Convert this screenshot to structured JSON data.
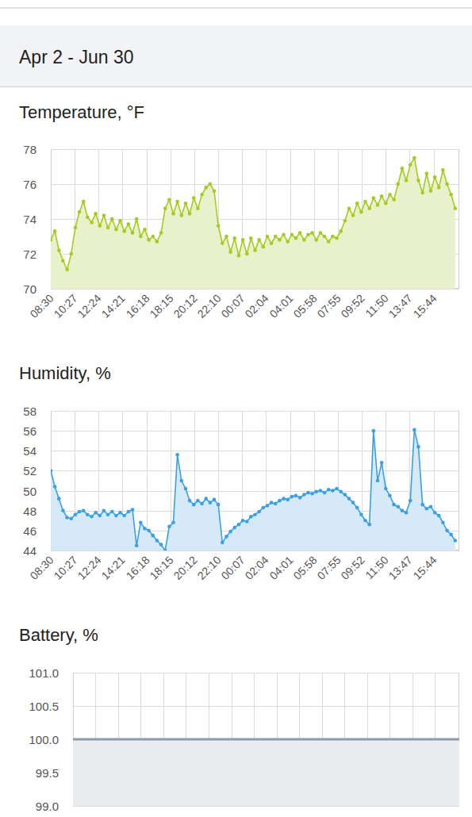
{
  "page": {
    "title": "Apr 2 - Jun 30"
  },
  "chart_data": [
    {
      "type": "area",
      "title": "Temperature, °F",
      "color": "#a3cc1e",
      "marker": "circle",
      "grid": true,
      "x": [
        0,
        20,
        40,
        60,
        80,
        100,
        120,
        140,
        160,
        180,
        200,
        220,
        240,
        260,
        280,
        300,
        320,
        340,
        360,
        380,
        400,
        420,
        440,
        460,
        480,
        500,
        520,
        540,
        560,
        580,
        600,
        620,
        640,
        660,
        680,
        700,
        720,
        740,
        760,
        780,
        800,
        820,
        840,
        860,
        880,
        900,
        920,
        940,
        960,
        980,
        1000,
        1020,
        1040,
        1060,
        1080,
        1100,
        1120,
        1140,
        1160,
        1180,
        1200,
        1220,
        1240,
        1260,
        1280,
        1300,
        1320,
        1340,
        1360,
        1380,
        1400,
        1420,
        1440,
        1460,
        1480,
        1500,
        1520,
        1540,
        1560,
        1580,
        1600,
        1620,
        1640,
        1660,
        1680,
        1700,
        1720,
        1740,
        1760,
        1780,
        1800,
        1820,
        1840,
        1860,
        1880,
        1900,
        1920,
        1940,
        1960,
        1980
      ],
      "values": [
        72.8,
        73.3,
        72.2,
        71.6,
        71.1,
        72.0,
        73.5,
        74.4,
        75.0,
        74.1,
        73.8,
        74.3,
        73.6,
        74.2,
        73.5,
        74.0,
        73.4,
        73.9,
        73.3,
        73.7,
        73.2,
        74.0,
        73.0,
        73.4,
        72.8,
        73.0,
        72.7,
        73.2,
        74.6,
        75.1,
        74.3,
        75.0,
        74.2,
        74.9,
        74.3,
        75.2,
        74.6,
        75.4,
        75.8,
        76.0,
        75.6,
        73.6,
        72.6,
        73.0,
        72.1,
        72.9,
        71.9,
        72.8,
        72.0,
        72.9,
        72.2,
        72.8,
        72.4,
        73.0,
        72.6,
        73.0,
        72.8,
        73.1,
        72.7,
        73.1,
        72.9,
        73.2,
        72.8,
        73.1,
        73.2,
        72.8,
        73.2,
        73.0,
        72.7,
        73.0,
        72.9,
        73.3,
        73.9,
        74.6,
        74.2,
        74.9,
        74.4,
        75.0,
        74.6,
        75.2,
        74.8,
        75.3,
        74.9,
        75.4,
        75.1,
        76.0,
        76.9,
        76.2,
        77.1,
        77.5,
        76.2,
        75.5,
        76.6,
        75.6,
        76.4,
        75.8,
        76.8,
        76.0,
        75.4,
        74.6
      ],
      "xlim": [
        0,
        2000
      ],
      "xticks": [
        {
          "value": 0,
          "label": "08:30"
        },
        {
          "value": 117,
          "label": "10:27"
        },
        {
          "value": 234,
          "label": "12:24"
        },
        {
          "value": 351,
          "label": "14:21"
        },
        {
          "value": 468,
          "label": "16:18"
        },
        {
          "value": 585,
          "label": "18:15"
        },
        {
          "value": 702,
          "label": "20:12"
        },
        {
          "value": 820,
          "label": "22:10"
        },
        {
          "value": 937,
          "label": "00:07"
        },
        {
          "value": 1054,
          "label": "02:04"
        },
        {
          "value": 1171,
          "label": "04:01"
        },
        {
          "value": 1288,
          "label": "05:58"
        },
        {
          "value": 1405,
          "label": "07:55"
        },
        {
          "value": 1522,
          "label": "09:52"
        },
        {
          "value": 1640,
          "label": "11:50"
        },
        {
          "value": 1757,
          "label": "13:47"
        },
        {
          "value": 1874,
          "label": "15:44"
        }
      ],
      "ylim": [
        70,
        78
      ],
      "yticks": [
        70,
        72,
        74,
        76,
        78
      ]
    },
    {
      "type": "area",
      "title": "Humidity, %",
      "color": "#3aa0e3",
      "marker": "circle",
      "grid": true,
      "x": [
        0,
        20,
        40,
        60,
        80,
        100,
        120,
        140,
        160,
        180,
        200,
        220,
        240,
        260,
        280,
        300,
        320,
        340,
        360,
        380,
        400,
        420,
        440,
        460,
        480,
        500,
        520,
        540,
        560,
        580,
        600,
        620,
        640,
        660,
        680,
        700,
        720,
        740,
        760,
        780,
        800,
        820,
        840,
        860,
        880,
        900,
        920,
        940,
        960,
        980,
        1000,
        1020,
        1040,
        1060,
        1080,
        1100,
        1120,
        1140,
        1160,
        1180,
        1200,
        1220,
        1240,
        1260,
        1280,
        1300,
        1320,
        1340,
        1360,
        1380,
        1400,
        1420,
        1440,
        1460,
        1480,
        1500,
        1520,
        1540,
        1560,
        1580,
        1600,
        1620,
        1640,
        1660,
        1680,
        1700,
        1720,
        1740,
        1760,
        1780,
        1800,
        1820,
        1840,
        1860,
        1880,
        1900,
        1920,
        1940,
        1960,
        1980
      ],
      "values": [
        52.0,
        50.4,
        49.2,
        48.0,
        47.3,
        47.2,
        47.6,
        47.9,
        48.0,
        47.6,
        47.4,
        47.8,
        47.5,
        48.0,
        47.6,
        47.9,
        47.5,
        47.8,
        47.5,
        47.9,
        48.1,
        44.5,
        46.8,
        46.2,
        46.0,
        45.5,
        45.0,
        44.6,
        44.0,
        46.4,
        46.8,
        53.6,
        51.0,
        50.2,
        49.0,
        48.6,
        49.0,
        48.7,
        49.2,
        48.8,
        49.1,
        48.6,
        44.8,
        45.4,
        45.9,
        46.3,
        46.6,
        47.0,
        46.9,
        47.4,
        47.6,
        47.9,
        48.3,
        48.5,
        48.8,
        48.7,
        49.0,
        49.2,
        49.1,
        49.4,
        49.5,
        49.3,
        49.6,
        49.8,
        49.7,
        49.9,
        50.0,
        49.8,
        50.1,
        50.0,
        50.2,
        49.9,
        49.6,
        49.2,
        48.8,
        48.3,
        47.6,
        47.0,
        46.6,
        56.0,
        51.0,
        52.8,
        50.2,
        49.5,
        48.6,
        48.4,
        48.0,
        47.8,
        49.0,
        56.1,
        54.4,
        48.6,
        48.2,
        48.4,
        47.8,
        47.5,
        46.8,
        46.0,
        45.6,
        45.0
      ],
      "xlim": [
        0,
        2000
      ],
      "xticks": [
        {
          "value": 0,
          "label": "08:30"
        },
        {
          "value": 117,
          "label": "10:27"
        },
        {
          "value": 234,
          "label": "12:24"
        },
        {
          "value": 351,
          "label": "14:21"
        },
        {
          "value": 468,
          "label": "16:18"
        },
        {
          "value": 585,
          "label": "18:15"
        },
        {
          "value": 702,
          "label": "20:12"
        },
        {
          "value": 820,
          "label": "22:10"
        },
        {
          "value": 937,
          "label": "00:07"
        },
        {
          "value": 1054,
          "label": "02:04"
        },
        {
          "value": 1171,
          "label": "04:01"
        },
        {
          "value": 1288,
          "label": "05:58"
        },
        {
          "value": 1405,
          "label": "07:55"
        },
        {
          "value": 1522,
          "label": "09:52"
        },
        {
          "value": 1640,
          "label": "11:50"
        },
        {
          "value": 1757,
          "label": "13:47"
        },
        {
          "value": 1874,
          "label": "15:44"
        }
      ],
      "ylim": [
        44,
        58
      ],
      "yticks": [
        44,
        46,
        48,
        50,
        52,
        54,
        56,
        58
      ]
    },
    {
      "type": "area",
      "title": "Battery, %",
      "color": "#8f9aaa",
      "marker": "none",
      "grid": true,
      "tick_labels": "y",
      "x": [
        0,
        500,
        1000,
        1500,
        2000
      ],
      "values": [
        100,
        100,
        100,
        100,
        100
      ],
      "xlim": [
        0,
        2000
      ],
      "xticks": [
        0,
        117,
        234,
        351,
        468,
        585,
        702,
        820,
        937,
        1054,
        1171,
        1288,
        1405,
        1522,
        1640,
        1757,
        1874
      ],
      "ylim": [
        99,
        101
      ],
      "yticks": [
        {
          "value": 99,
          "label": "99.0"
        },
        {
          "value": 99.5,
          "label": "99.5"
        },
        {
          "value": 100,
          "label": "100.0"
        },
        {
          "value": 100.5,
          "label": "100.5"
        },
        {
          "value": 101,
          "label": "101.0"
        }
      ]
    }
  ]
}
